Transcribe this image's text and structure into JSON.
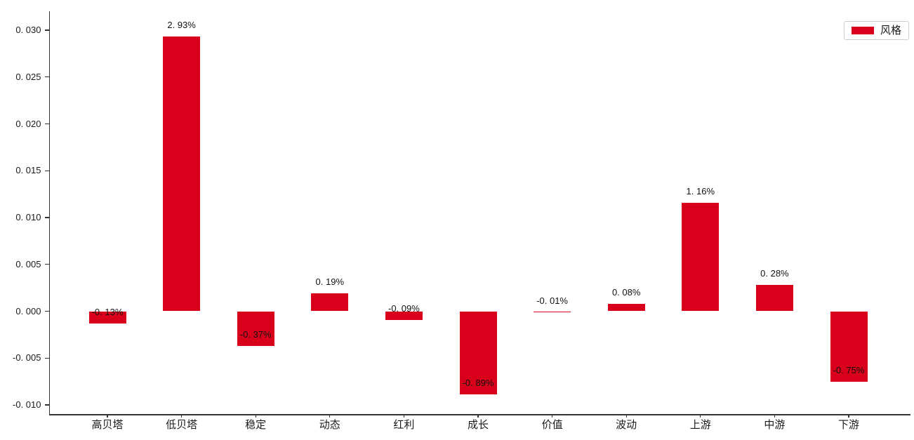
{
  "chart_data": {
    "type": "bar",
    "title": "",
    "xlabel": "",
    "ylabel": "",
    "grid": false,
    "background": "#ffffff",
    "bar_color": "#d9001b",
    "axis_color": "#333333",
    "text_color": "#1a1a1a",
    "categories": [
      "高贝塔",
      "低贝塔",
      "稳定",
      "动态",
      "红利",
      "成长",
      "价值",
      "波动",
      "上游",
      "中游",
      "下游"
    ],
    "series": [
      {
        "name": "风格",
        "values": [
          -0.0013,
          0.0293,
          -0.0037,
          0.0019,
          -0.0009,
          -0.0089,
          -0.0001,
          0.0008,
          0.0116,
          0.0028,
          -0.0075
        ],
        "value_labels": [
          "-0. 13%",
          "2. 93%",
          "-0. 37%",
          "0. 19%",
          "-0. 09%",
          "-0. 89%",
          "-0. 01%",
          "0. 08%",
          "1. 16%",
          "0. 28%",
          "-0. 75%"
        ]
      }
    ],
    "y_ticks": [
      0.03,
      0.025,
      0.02,
      0.015,
      0.01,
      0.005,
      0.0,
      -0.005,
      -0.01
    ],
    "y_tick_labels": [
      "0. 030",
      "0. 025",
      "0. 020",
      "0. 015",
      "0. 010",
      "0. 005",
      "0. 000",
      "-0. 005",
      "-0. 010"
    ],
    "ylim": [
      -0.011,
      0.0321
    ],
    "legend": {
      "label": "风格",
      "position": "upper-right",
      "swatch_color": "#d9001b",
      "border_color": "#cccccc"
    }
  }
}
